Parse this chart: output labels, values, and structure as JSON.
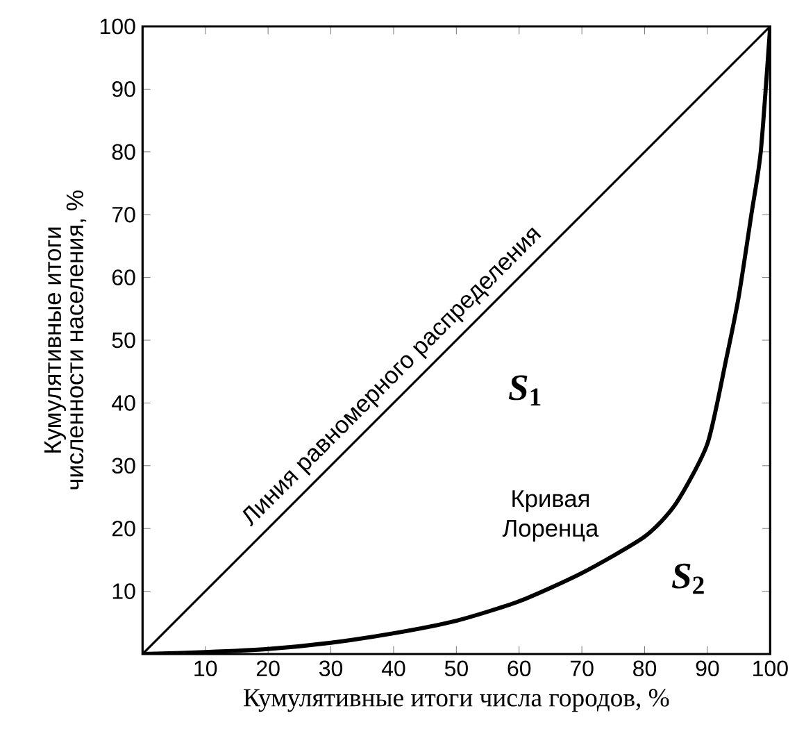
{
  "chart_data": {
    "type": "line",
    "xlabel": "Кумулятивные итоги числа городов, %",
    "ylabel": "Кумулятивные итоги численности населения, %",
    "series": [
      {
        "name": "Линия равномерного распределения",
        "color": "#000000",
        "x": [
          0,
          100
        ],
        "values": [
          0,
          100
        ]
      },
      {
        "name": "Кривая Лоренца",
        "color": "#000000",
        "x": [
          0,
          10,
          20,
          30,
          40,
          50,
          60,
          70,
          80,
          85,
          90,
          93,
          95,
          97,
          98.5,
          100
        ],
        "values": [
          0,
          0.3,
          0.8,
          1.8,
          3.3,
          5.3,
          8.4,
          12.9,
          18.7,
          24,
          33.5,
          47,
          57,
          70,
          80,
          100
        ]
      }
    ],
    "annotations": [
      "*S*$_{1}$",
      "*S*$_{2}$"
    ],
    "xlim": [
      0,
      100
    ],
    "ylim": [
      0,
      100
    ],
    "xticks": [
      10,
      20,
      30,
      40,
      50,
      60,
      70,
      80,
      90,
      100
    ],
    "yticks": [
      10,
      20,
      30,
      40,
      50,
      60,
      70,
      80,
      90,
      100
    ]
  }
}
